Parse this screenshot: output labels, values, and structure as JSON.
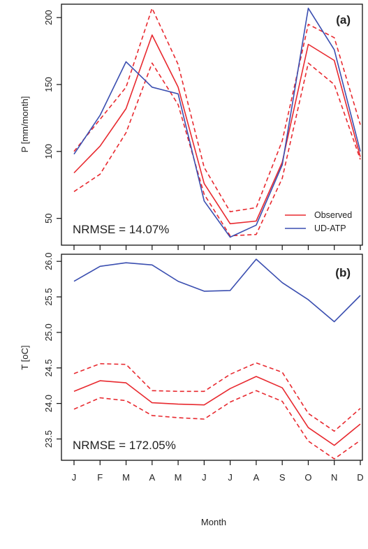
{
  "chart_data": [
    {
      "type": "line",
      "panel_label": "(a)",
      "ylabel": "P [mm/month]",
      "xlabel": "",
      "categories": [
        "J",
        "F",
        "M",
        "A",
        "M",
        "J",
        "J",
        "A",
        "S",
        "O",
        "N",
        "D"
      ],
      "ylim": [
        30,
        210
      ],
      "yticks": [
        50,
        100,
        150,
        200
      ],
      "annotation": "NRMSE = 14.07%",
      "legend_position": "bottom-right",
      "series": [
        {
          "name": "Observed",
          "color": "#e8292f",
          "style": "solid",
          "values": [
            84,
            104,
            132,
            187,
            148,
            76,
            46,
            48,
            92,
            180,
            168,
            96
          ]
        },
        {
          "name": "",
          "color": "#e8292f",
          "style": "dashed",
          "values": [
            100,
            124,
            148,
            207,
            165,
            88,
            55,
            58,
            108,
            195,
            185,
            120
          ]
        },
        {
          "name": "",
          "color": "#e8292f",
          "style": "dashed",
          "values": [
            70,
            83,
            114,
            166,
            135,
            68,
            37,
            38,
            80,
            166,
            150,
            94
          ]
        },
        {
          "name": "UD-ATP",
          "color": "#3a4eb0",
          "style": "solid",
          "values": [
            98,
            127,
            167,
            148,
            143,
            63,
            36,
            45,
            90,
            207,
            176,
            100
          ]
        }
      ]
    },
    {
      "type": "line",
      "panel_label": "(b)",
      "ylabel": "T [oC]",
      "xlabel": "Month",
      "categories": [
        "J",
        "F",
        "M",
        "A",
        "M",
        "J",
        "J",
        "A",
        "S",
        "O",
        "N",
        "D"
      ],
      "ylim": [
        23.2,
        26.1
      ],
      "yticks": [
        "23.5",
        "24.0",
        "24.5",
        "25.0",
        "25.5",
        "26.0"
      ],
      "annotation": "NRMSE = 172.05%",
      "series": [
        {
          "name": "Observed",
          "color": "#e8292f",
          "style": "solid",
          "values": [
            24.17,
            24.32,
            24.29,
            24.01,
            23.99,
            23.98,
            24.21,
            24.38,
            24.22,
            23.66,
            23.41,
            23.71
          ]
        },
        {
          "name": "",
          "color": "#e8292f",
          "style": "dashed",
          "values": [
            24.42,
            24.56,
            24.55,
            24.18,
            24.17,
            24.17,
            24.41,
            24.57,
            24.44,
            23.86,
            23.61,
            23.93
          ]
        },
        {
          "name": "",
          "color": "#e8292f",
          "style": "dashed",
          "values": [
            23.92,
            24.08,
            24.04,
            23.83,
            23.8,
            23.78,
            24.02,
            24.18,
            24.03,
            23.47,
            23.22,
            23.48
          ]
        },
        {
          "name": "UD-ATP",
          "color": "#3a4eb0",
          "style": "solid",
          "values": [
            25.72,
            25.93,
            25.98,
            25.95,
            25.72,
            25.58,
            25.59,
            26.03,
            25.7,
            25.46,
            25.15,
            25.52
          ]
        }
      ]
    }
  ]
}
